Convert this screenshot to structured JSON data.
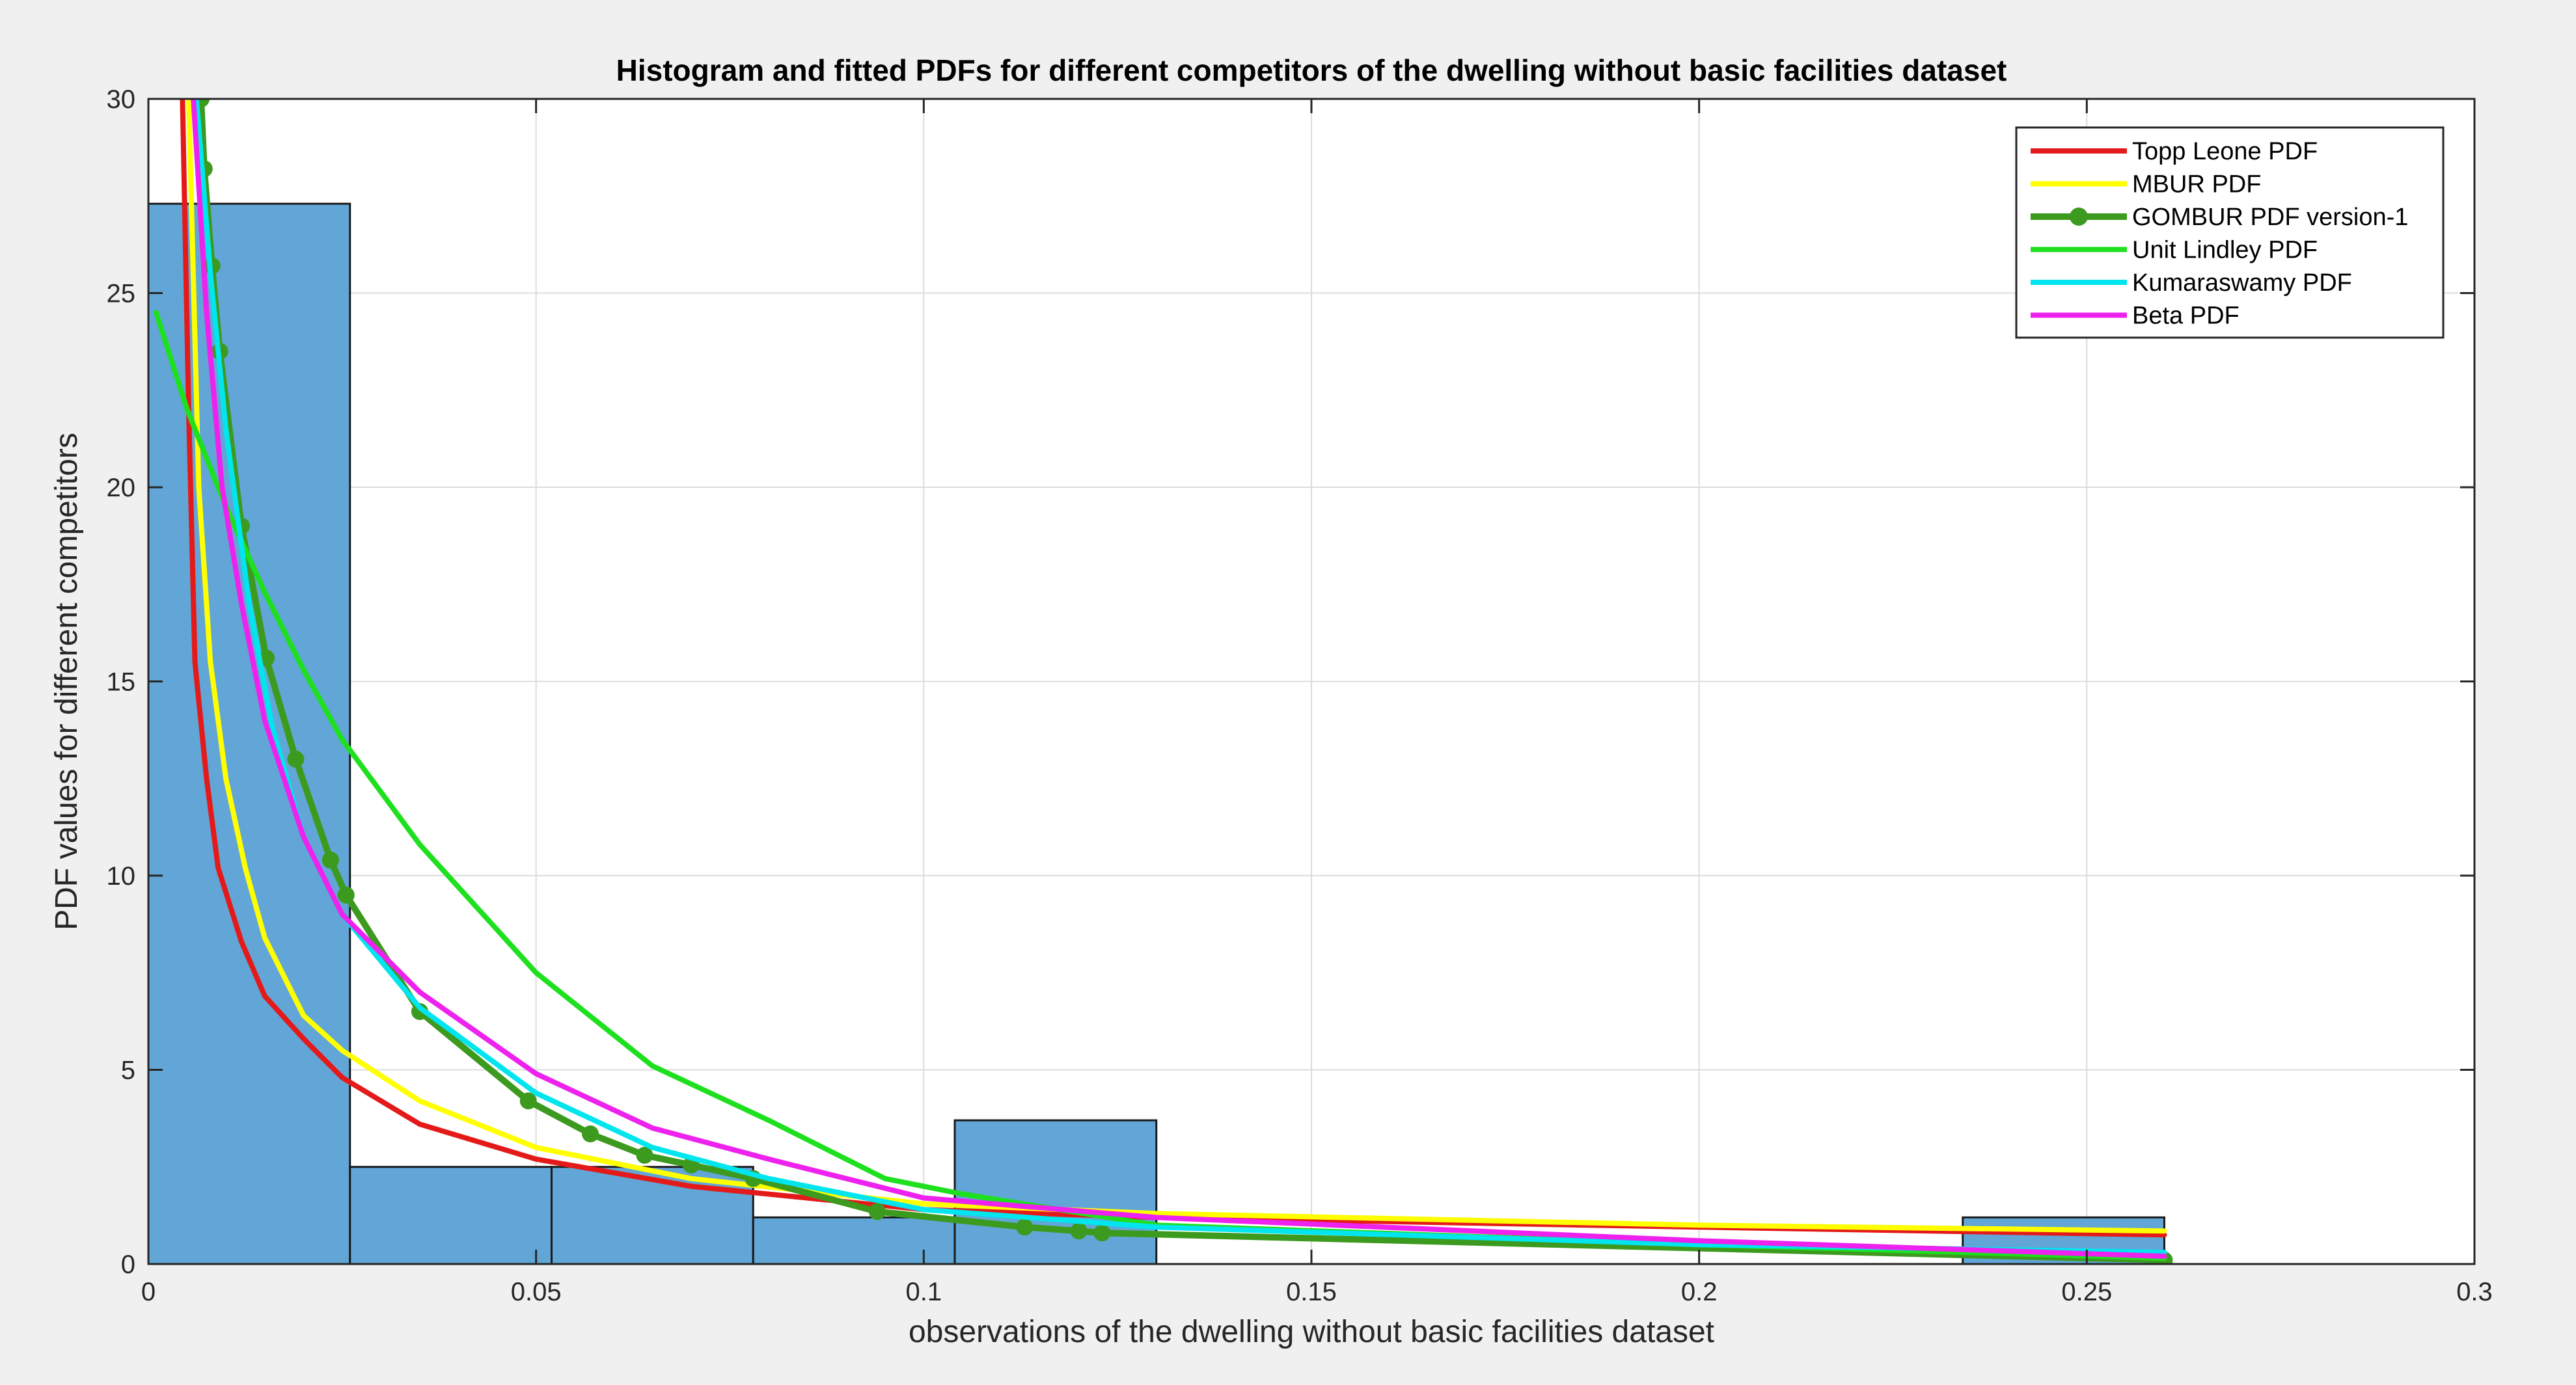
{
  "chart_data": {
    "type": "bar",
    "title": "Histogram and fitted PDFs for different competitors of the dwelling without basic facilities dataset",
    "xlabel": "observations of the dwelling without basic facilities dataset",
    "ylabel": "PDF values for different competitors",
    "xlim": [
      0,
      0.3
    ],
    "ylim": [
      0,
      30
    ],
    "xticks": [
      0,
      0.05,
      0.1,
      0.15,
      0.2,
      0.25,
      0.3
    ],
    "xtick_labels": [
      "0",
      "0.05",
      "0.1",
      "0.15",
      "0.2",
      "0.25",
      "0.3"
    ],
    "yticks": [
      0,
      5,
      10,
      15,
      20,
      25,
      30
    ],
    "ytick_labels": [
      "0",
      "5",
      "10",
      "15",
      "20",
      "25",
      "30"
    ],
    "grid": true,
    "legend_position": "top-right",
    "histogram": {
      "color": "#61a6d6",
      "bins": [
        {
          "x0": 0.0,
          "x1": 0.026,
          "height": 27.3
        },
        {
          "x0": 0.026,
          "x1": 0.052,
          "height": 2.5
        },
        {
          "x0": 0.052,
          "x1": 0.078,
          "height": 2.5
        },
        {
          "x0": 0.078,
          "x1": 0.104,
          "height": 1.2
        },
        {
          "x0": 0.104,
          "x1": 0.13,
          "height": 3.7
        },
        {
          "x0": 0.13,
          "x1": 0.156,
          "height": 0
        },
        {
          "x0": 0.156,
          "x1": 0.182,
          "height": 0
        },
        {
          "x0": 0.182,
          "x1": 0.208,
          "height": 0
        },
        {
          "x0": 0.208,
          "x1": 0.234,
          "height": 0
        },
        {
          "x0": 0.234,
          "x1": 0.26,
          "height": 1.2
        }
      ]
    },
    "series": [
      {
        "name": "Topp Leone PDF",
        "color": "#e41a1a",
        "markers": false,
        "x": [
          0.0044,
          0.0052,
          0.006,
          0.0075,
          0.009,
          0.012,
          0.015,
          0.02,
          0.025,
          0.035,
          0.05,
          0.07,
          0.1,
          0.13,
          0.2,
          0.26
        ],
        "y": [
          30,
          22,
          15.5,
          12.5,
          10.2,
          8.3,
          6.9,
          5.8,
          4.8,
          3.6,
          2.7,
          2.0,
          1.4,
          1.2,
          0.95,
          0.75
        ]
      },
      {
        "name": "MBUR PDF",
        "color": "#ffff00",
        "markers": false,
        "x": [
          0.0052,
          0.0065,
          0.008,
          0.01,
          0.0125,
          0.015,
          0.02,
          0.025,
          0.035,
          0.05,
          0.07,
          0.1,
          0.13,
          0.2,
          0.26
        ],
        "y": [
          30,
          20,
          15.5,
          12.5,
          10.2,
          8.4,
          6.4,
          5.5,
          4.2,
          3.0,
          2.2,
          1.55,
          1.3,
          1.0,
          0.85
        ]
      },
      {
        "name": "GOMBUR PDF version-1",
        "color": "#3c9a1e",
        "markers": true,
        "x": [
          0.0068,
          0.0072,
          0.0082,
          0.0092,
          0.012,
          0.0152,
          0.019,
          0.0235,
          0.0255,
          0.035,
          0.049,
          0.057,
          0.064,
          0.07,
          0.078,
          0.094,
          0.113,
          0.12,
          0.123,
          0.26
        ],
        "y": [
          30,
          28.2,
          25.7,
          23.5,
          19.0,
          15.6,
          13.0,
          10.4,
          9.5,
          6.5,
          4.2,
          3.35,
          2.8,
          2.55,
          2.2,
          1.35,
          0.95,
          0.85,
          0.8,
          0.1
        ]
      },
      {
        "name": "Unit Lindley PDF",
        "color": "#1ee01e",
        "markers": false,
        "x": [
          0.001,
          0.005,
          0.01,
          0.015,
          0.02,
          0.025,
          0.035,
          0.05,
          0.065,
          0.08,
          0.095,
          0.105,
          0.13,
          0.2,
          0.26
        ],
        "y": [
          24.5,
          22.0,
          19.5,
          17.3,
          15.3,
          13.5,
          10.8,
          7.5,
          5.1,
          3.7,
          2.2,
          1.8,
          1.0,
          0.5,
          0.15
        ]
      },
      {
        "name": "Kumaraswamy PDF",
        "color": "#00e5ee",
        "markers": false,
        "x": [
          0.0062,
          0.008,
          0.01,
          0.013,
          0.016,
          0.02,
          0.025,
          0.035,
          0.05,
          0.065,
          0.08,
          0.1,
          0.13,
          0.2,
          0.26
        ],
        "y": [
          30,
          25.5,
          21.5,
          17.0,
          13.8,
          11.0,
          9.0,
          6.6,
          4.4,
          3.0,
          2.2,
          1.4,
          0.95,
          0.5,
          0.3
        ]
      },
      {
        "name": "Beta PDF",
        "color": "#ee22ee",
        "markers": false,
        "x": [
          0.0058,
          0.0075,
          0.0095,
          0.012,
          0.015,
          0.02,
          0.025,
          0.035,
          0.05,
          0.065,
          0.08,
          0.1,
          0.13,
          0.2,
          0.26
        ],
        "y": [
          30,
          24.5,
          20.0,
          17.0,
          14.0,
          11.0,
          9.0,
          7.0,
          4.9,
          3.5,
          2.7,
          1.7,
          1.2,
          0.6,
          0.2
        ]
      }
    ]
  }
}
